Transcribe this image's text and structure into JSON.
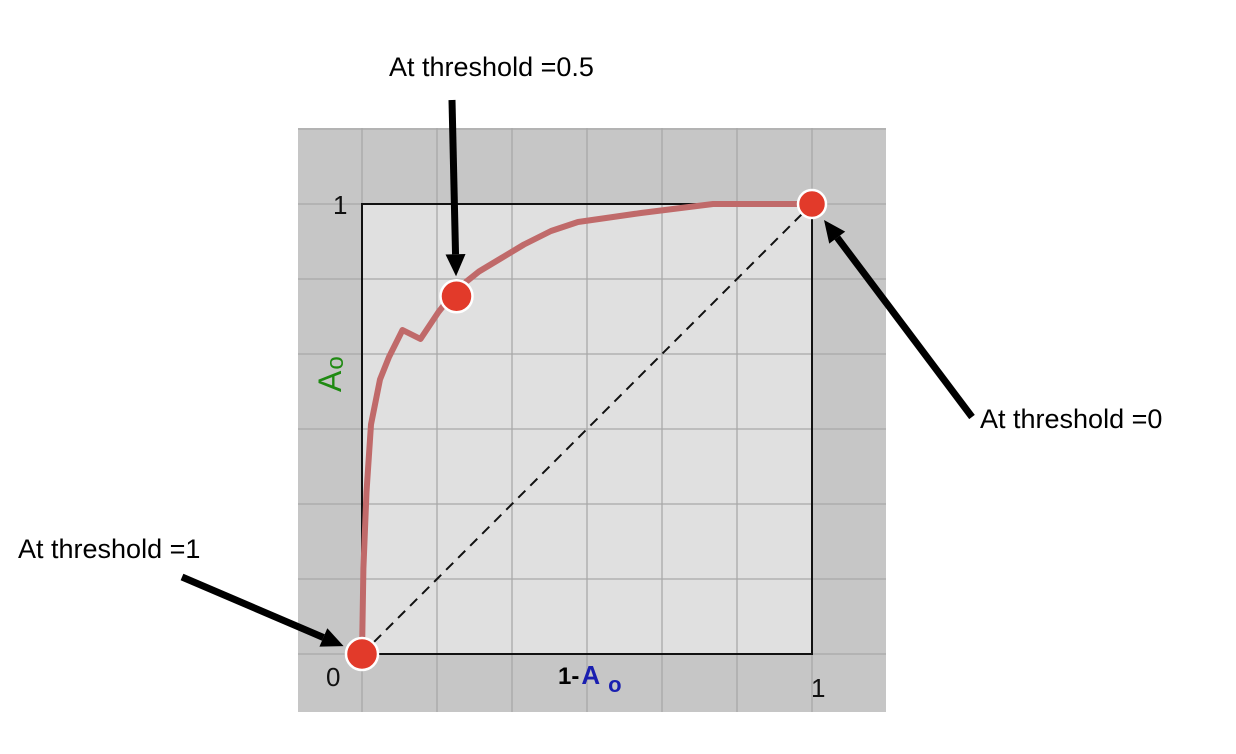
{
  "chart_data": {
    "type": "line",
    "xlim": [
      0,
      1
    ],
    "ylim": [
      0,
      1
    ],
    "x_ticks": [
      "0",
      "1"
    ],
    "y_ticks": [
      "1"
    ],
    "xlabel": {
      "prefix": "1-",
      "symbol": "A",
      "subscript": "o"
    },
    "ylabel": {
      "symbol": "A",
      "subscript": "o"
    },
    "grid": true,
    "series": [
      {
        "style": "solid",
        "color": "#c06a6a",
        "x": [
          0,
          0.003,
          0.01,
          0.02,
          0.04,
          0.06,
          0.09,
          0.13,
          0.17,
          0.21,
          0.26,
          0.31,
          0.36,
          0.42,
          0.48,
          0.55,
          0.62,
          0.7,
          0.78,
          0.86,
          0.93,
          1.0
        ],
        "y": [
          0,
          0.19,
          0.36,
          0.51,
          0.61,
          0.66,
          0.72,
          0.7,
          0.76,
          0.81,
          0.85,
          0.88,
          0.91,
          0.94,
          0.96,
          0.97,
          0.98,
          0.99,
          1.0,
          1.0,
          1.0,
          1.0
        ]
      },
      {
        "style": "dashed",
        "color": "#111111",
        "x": [
          0,
          1
        ],
        "y": [
          0,
          1
        ]
      }
    ],
    "points": [
      {
        "x": 0,
        "y": 0,
        "annotation": "At threshold =1"
      },
      {
        "x": 0.21,
        "y": 0.795,
        "annotation": "At threshold =0.5"
      },
      {
        "x": 1,
        "y": 1,
        "annotation": "At threshold =0"
      }
    ],
    "colors": {
      "outer_bg": "#c6c6c6",
      "plot_bg": "#e0e0e0",
      "grid": "#a8a8a8",
      "point": "#e23a2a",
      "xlabel_symbol": "#1a1fb0",
      "ylabel": "#1f8a12"
    }
  }
}
